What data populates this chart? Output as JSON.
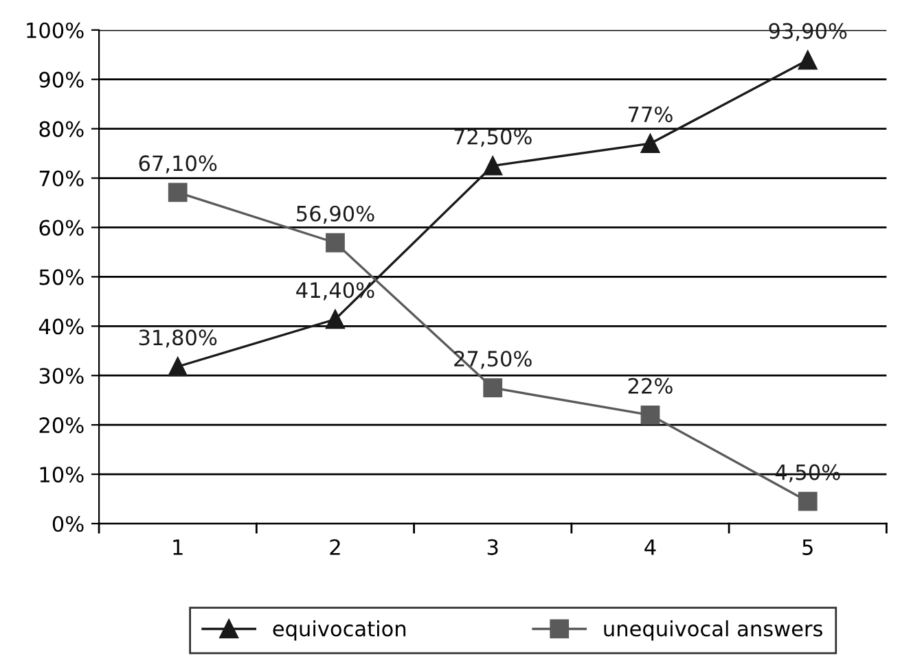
{
  "chart_data": {
    "type": "line",
    "categories": [
      "1",
      "2",
      "3",
      "4",
      "5"
    ],
    "series": [
      {
        "name": "equivocation",
        "color": "#1a1a1a",
        "marker": "triangle",
        "values": [
          31.8,
          41.4,
          72.5,
          77,
          93.9
        ],
        "value_labels": [
          "31,80%",
          "41,40%",
          "72,50%",
          "77%",
          "93,90%"
        ]
      },
      {
        "name": "unequivocal answers",
        "color": "#5a5a5a",
        "marker": "square",
        "values": [
          67.1,
          56.9,
          27.5,
          22,
          4.5
        ],
        "value_labels": [
          "67,10%",
          "56,90%",
          "27,50%",
          "22%",
          "4,50%"
        ]
      }
    ],
    "ylim": [
      0,
      100
    ],
    "yticks": [
      {
        "value": 0,
        "label": "0%"
      },
      {
        "value": 10,
        "label": "10%"
      },
      {
        "value": 20,
        "label": "20%"
      },
      {
        "value": 30,
        "label": "30%"
      },
      {
        "value": 40,
        "label": "40%"
      },
      {
        "value": 50,
        "label": "50%"
      },
      {
        "value": 60,
        "label": "60%"
      },
      {
        "value": 70,
        "label": "70%"
      },
      {
        "value": 80,
        "label": "80%"
      },
      {
        "value": 90,
        "label": "90%"
      },
      {
        "value": 100,
        "label": "100%"
      }
    ],
    "grid": "y",
    "legend": "bottom",
    "line_style": "solid"
  }
}
